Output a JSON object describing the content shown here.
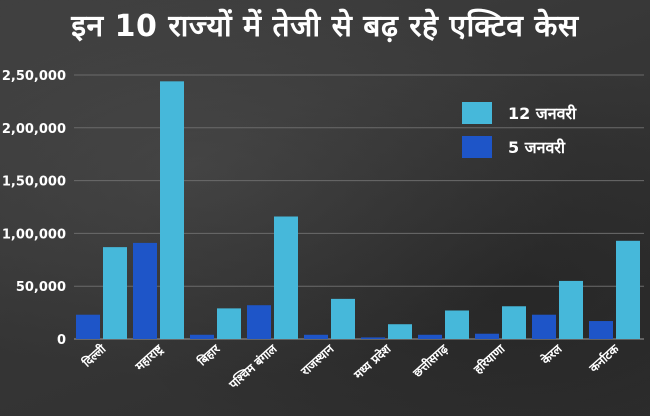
{
  "title": "इन 10 राज्यों में तेजी से बढ़ रहे एक्टिव केस",
  "chart_data": {
    "type": "bar",
    "categories": [
      "दिल्ली",
      "महाराष्ट्र",
      "बिहार",
      "पश्चिम बंगाल",
      "राजस्थान",
      "मध्य प्रदेश",
      "छत्तीसगढ़",
      "हरियाणा",
      "केरल",
      "कर्नाटक"
    ],
    "series": [
      {
        "name": "5 जनवरी",
        "color": "#1e55c8",
        "values": [
          23000,
          91000,
          4000,
          32000,
          4000,
          1500,
          4000,
          5000,
          23000,
          17000
        ]
      },
      {
        "name": "12 जनवरी",
        "color": "#46b8da",
        "values": [
          87000,
          244000,
          29000,
          116000,
          38000,
          14000,
          27000,
          31000,
          55000,
          93000
        ]
      }
    ],
    "ylim": [
      0,
      250000
    ],
    "yticks": [
      0,
      50000,
      100000,
      150000,
      200000,
      250000
    ],
    "ytick_labels": [
      "0",
      "50,000",
      "1,00,000",
      "1,50,000",
      "2,00,000",
      "2,50,000"
    ],
    "grid": true,
    "legend_position": "top-right"
  },
  "legend": [
    {
      "label": "12 जनवरी",
      "color": "#46b8da"
    },
    {
      "label": "5 जनवरी",
      "color": "#1e55c8"
    }
  ]
}
